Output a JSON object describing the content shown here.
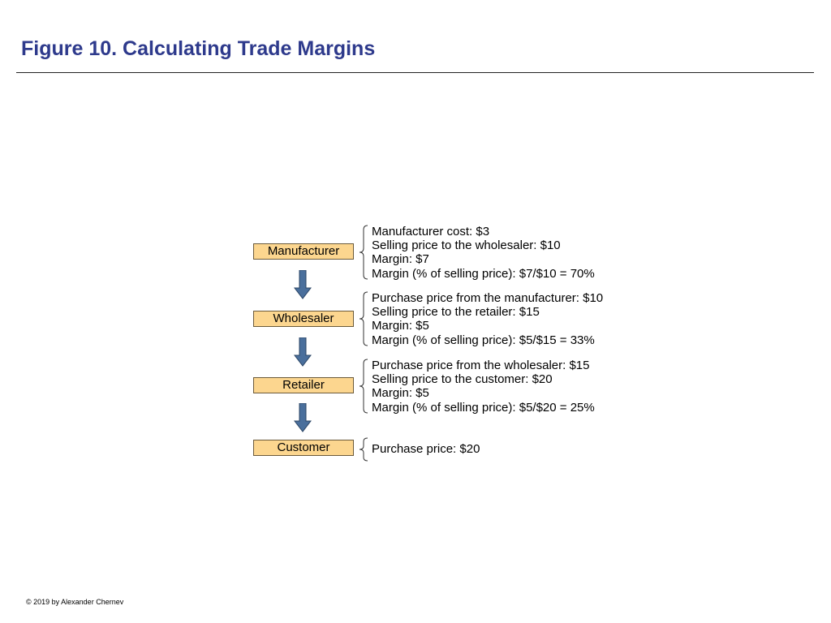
{
  "title": "Figure 10. Calculating Trade Margins",
  "colors": {
    "title": "#2e3a8c",
    "stage_fill": "#fcd68f",
    "arrow": "#4a6f9c"
  },
  "stages": [
    {
      "label": "Manufacturer",
      "details": [
        "Manufacturer cost: $3",
        "Selling price to the wholesaler: $10",
        "Margin: $7",
        "Margin (% of selling price): $7/$10 = 70%"
      ]
    },
    {
      "label": "Wholesaler",
      "details": [
        "Purchase price from the manufacturer: $10",
        "Selling price to the retailer: $15",
        "Margin: $5",
        "Margin (% of selling price): $5/$15 = 33%"
      ]
    },
    {
      "label": "Retailer",
      "details": [
        "Purchase price from the wholesaler: $15",
        "Selling price to the customer: $20",
        "Margin: $5",
        "Margin (% of selling price): $5/$20 = 25%"
      ]
    },
    {
      "label": "Customer",
      "details": [
        "Purchase price: $20"
      ]
    }
  ],
  "footer": "© 2019 by Alexander Chernev"
}
